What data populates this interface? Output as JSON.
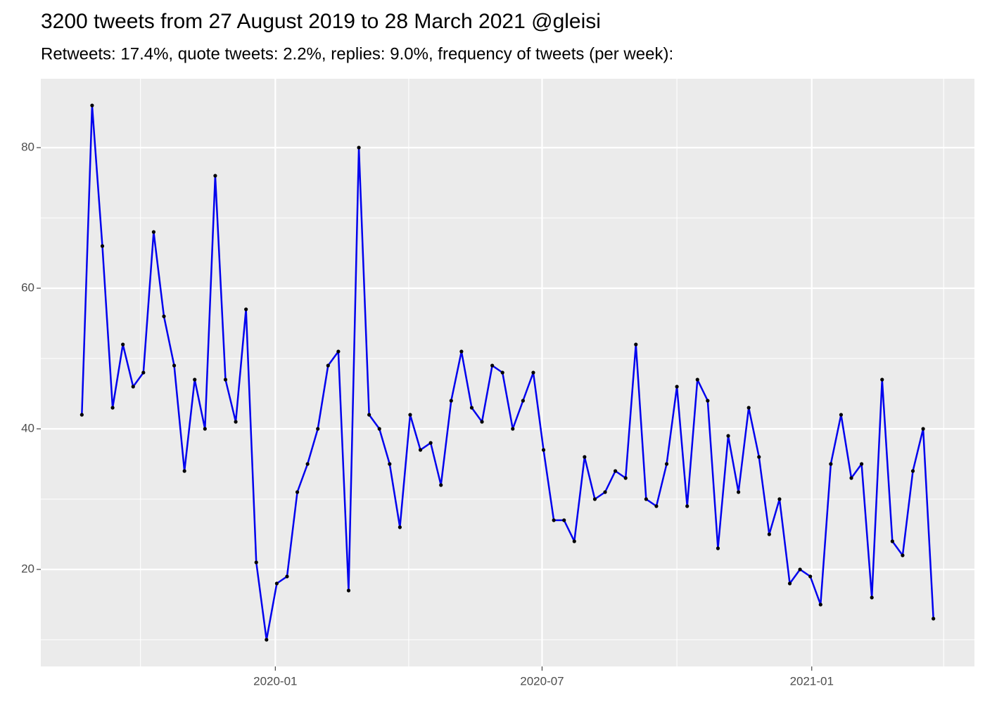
{
  "chart_data": {
    "type": "line",
    "title": "3200 tweets from 27 August 2019 to 28 March 2021 @gleisi",
    "subtitle": "Retweets: 17.4%, quote tweets: 2.2%, replies: 9.0%, frequency of tweets (per week):",
    "x": [
      "2019-08-22",
      "2019-08-29",
      "2019-09-05",
      "2019-09-12",
      "2019-09-19",
      "2019-09-26",
      "2019-10-03",
      "2019-10-10",
      "2019-10-17",
      "2019-10-24",
      "2019-10-31",
      "2019-11-07",
      "2019-11-14",
      "2019-11-21",
      "2019-11-28",
      "2019-12-05",
      "2019-12-12",
      "2019-12-19",
      "2019-12-26",
      "2020-01-02",
      "2020-01-09",
      "2020-01-16",
      "2020-01-23",
      "2020-01-30",
      "2020-02-06",
      "2020-02-13",
      "2020-02-20",
      "2020-02-27",
      "2020-03-05",
      "2020-03-12",
      "2020-03-19",
      "2020-03-26",
      "2020-04-02",
      "2020-04-09",
      "2020-04-16",
      "2020-04-23",
      "2020-04-30",
      "2020-05-07",
      "2020-05-14",
      "2020-05-21",
      "2020-05-28",
      "2020-06-04",
      "2020-06-11",
      "2020-06-18",
      "2020-06-25",
      "2020-07-02",
      "2020-07-09",
      "2020-07-16",
      "2020-07-23",
      "2020-07-30",
      "2020-08-06",
      "2020-08-13",
      "2020-08-20",
      "2020-08-27",
      "2020-09-03",
      "2020-09-10",
      "2020-09-17",
      "2020-09-24",
      "2020-10-01",
      "2020-10-08",
      "2020-10-15",
      "2020-10-22",
      "2020-10-29",
      "2020-11-05",
      "2020-11-12",
      "2020-11-19",
      "2020-11-26",
      "2020-12-03",
      "2020-12-10",
      "2020-12-17",
      "2020-12-24",
      "2020-12-31",
      "2021-01-07",
      "2021-01-14",
      "2021-01-21",
      "2021-01-28",
      "2021-02-04",
      "2021-02-11",
      "2021-02-18",
      "2021-02-25",
      "2021-03-04",
      "2021-03-11",
      "2021-03-18",
      "2021-03-25"
    ],
    "series": [
      {
        "color": "#0000ee",
        "marker_color": "#000000",
        "values": [
          42,
          86,
          66,
          43,
          52,
          46,
          48,
          68,
          56,
          49,
          34,
          47,
          40,
          76,
          47,
          41,
          57,
          21,
          10,
          18,
          19,
          31,
          35,
          40,
          49,
          51,
          17,
          80,
          42,
          40,
          35,
          26,
          42,
          37,
          38,
          32,
          44,
          51,
          43,
          41,
          49,
          48,
          40,
          44,
          48,
          37,
          27,
          27,
          24,
          36,
          30,
          31,
          34,
          33,
          52,
          30,
          29,
          35,
          46,
          29,
          47,
          44,
          23,
          39,
          31,
          43,
          36,
          25,
          30,
          18,
          20,
          19,
          15,
          35,
          42,
          33,
          35,
          16,
          47,
          24,
          22,
          34,
          40,
          13
        ]
      }
    ],
    "xlim": [
      "2019-07-25",
      "2021-04-22"
    ],
    "xticks": [
      {
        "value": "2020-01-01",
        "label": "2020-01"
      },
      {
        "value": "2020-07-01",
        "label": "2020-07"
      },
      {
        "value": "2021-01-01",
        "label": "2021-01"
      }
    ],
    "xminor": [
      "2019-10-01",
      "2020-04-01",
      "2020-10-01",
      "2021-04-01"
    ],
    "ylim": [
      6.2,
      89.8
    ],
    "yticks": [
      20,
      40,
      60,
      80
    ],
    "yminor": [
      10,
      30,
      50,
      70
    ],
    "grid": true
  }
}
